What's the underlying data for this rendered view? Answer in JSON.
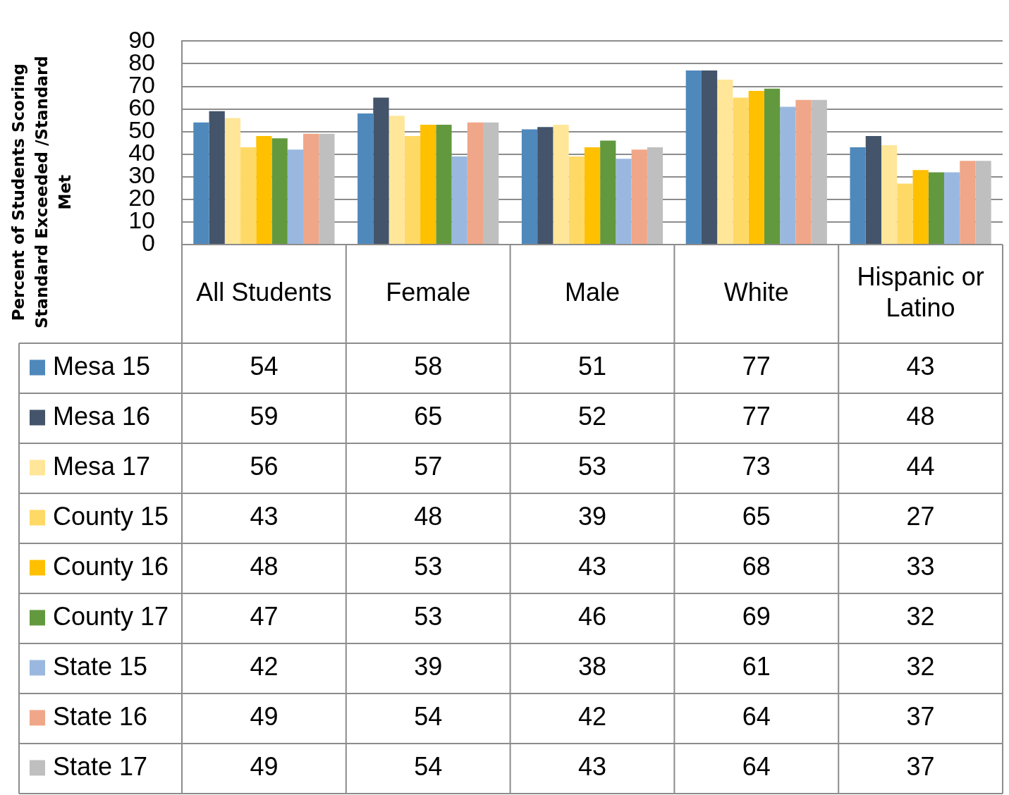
{
  "chart_data": {
    "type": "bar",
    "ylabel": "Percent of Students Scoring Standard Exceeded /Standard Met",
    "categories": [
      "All Students",
      "Female",
      "Male",
      "White",
      "Hispanic or Latino"
    ],
    "series": [
      {
        "name": "Mesa 15",
        "color": "#4f88bb",
        "values": [
          54,
          58,
          51,
          77,
          43
        ]
      },
      {
        "name": "Mesa 16",
        "color": "#44546a",
        "values": [
          59,
          65,
          52,
          77,
          48
        ]
      },
      {
        "name": "Mesa 17",
        "color": "#ffe699",
        "values": [
          56,
          57,
          53,
          73,
          44
        ]
      },
      {
        "name": "County 15",
        "color": "#ffd966",
        "values": [
          43,
          48,
          39,
          65,
          27
        ]
      },
      {
        "name": "County 16",
        "color": "#ffc000",
        "values": [
          48,
          53,
          43,
          68,
          33
        ]
      },
      {
        "name": "County 17",
        "color": "#62993e",
        "values": [
          47,
          53,
          46,
          69,
          32
        ]
      },
      {
        "name": "State 15",
        "color": "#9ab8df",
        "values": [
          42,
          39,
          38,
          61,
          32
        ]
      },
      {
        "name": "State 16",
        "color": "#f0a688",
        "values": [
          49,
          54,
          42,
          64,
          37
        ]
      },
      {
        "name": "State 17",
        "color": "#bfbfbf",
        "values": [
          49,
          54,
          43,
          64,
          37
        ]
      }
    ],
    "ylim": [
      0,
      90
    ],
    "yticks": [
      0,
      10,
      20,
      30,
      40,
      50,
      60,
      70,
      80,
      90
    ],
    "grid": "y",
    "legend": "bottom",
    "data_labels": true
  }
}
